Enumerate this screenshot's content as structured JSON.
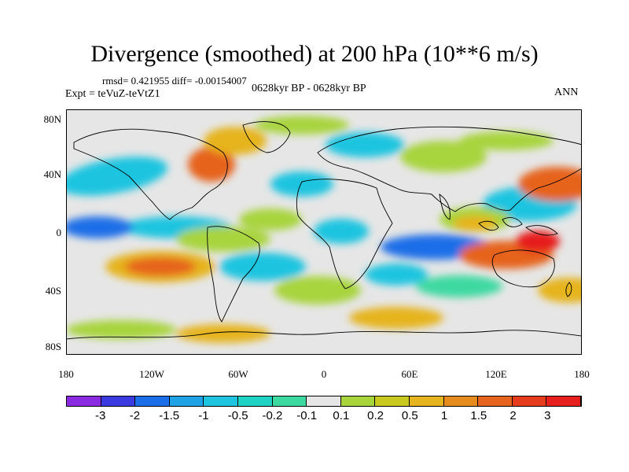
{
  "title": "Divergence (smoothed) at 200 hPa (10**6 m/s)",
  "stats": "rmsd= 0.421955 diff= -0.00154007",
  "expt": "Expt = teVuZ-teVtZ1",
  "period": "0628kyr BP - 0628kyr BP",
  "season": "ANN",
  "lat_ticks": [
    "80N",
    "40N",
    "0",
    "40S",
    "80S"
  ],
  "lon_ticks": [
    "180",
    "120W",
    "60W",
    "0",
    "60E",
    "120E",
    "180"
  ],
  "colorbar": {
    "labels": [
      "-3",
      "-2",
      "-1.5",
      "-1",
      "-0.5",
      "-0.2",
      "-0.1",
      "0.1",
      "0.2",
      "0.5",
      "1",
      "1.5",
      "2",
      "3"
    ],
    "colors": [
      "#8a2be2",
      "#3a3ae0",
      "#1a6ee8",
      "#1fa3e6",
      "#1fc4e0",
      "#1fd3c4",
      "#3cd9a0",
      "#e6e6e6",
      "#a8d43c",
      "#c8c81e",
      "#e6b41e",
      "#e68c1e",
      "#e6641e",
      "#e63c1e",
      "#e61e1e"
    ]
  },
  "palette": {
    "neutral": "#e6e6e6",
    "lightpos": "#a8d43c",
    "pos": "#e6b41e",
    "strongpos": "#e6641e",
    "extreme": "#e61e1e",
    "lightneg": "#3cd9a0",
    "neg": "#1fc4e0",
    "strongneg": "#1a6ee8"
  }
}
